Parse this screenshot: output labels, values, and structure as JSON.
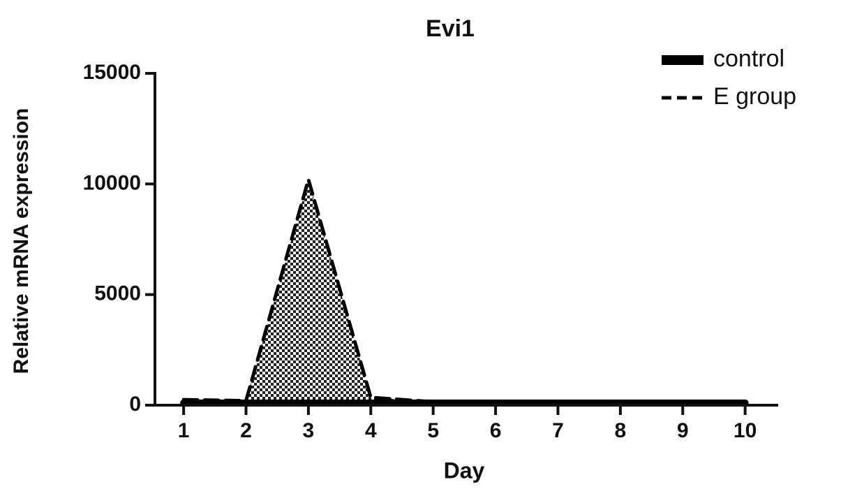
{
  "chart_data": {
    "type": "line",
    "title": "Evi1",
    "xlabel": "Day",
    "ylabel": "Relative mRNA expression",
    "x": [
      1,
      2,
      3,
      4,
      5,
      6,
      7,
      8,
      9,
      10
    ],
    "series": [
      {
        "name": "control",
        "color": "#000000",
        "values": [
          100,
          100,
          100,
          100,
          100,
          100,
          100,
          100,
          100,
          100
        ]
      },
      {
        "name": "E group",
        "color": "#000000",
        "fill": "checkered",
        "values": [
          250,
          200,
          10200,
          350,
          150,
          100,
          100,
          100,
          100,
          100
        ]
      }
    ],
    "xlim": [
      0.54,
      10.53
    ],
    "xticks": [
      1,
      2,
      3,
      4,
      5,
      6,
      7,
      8,
      9,
      10
    ],
    "ylim": [
      0,
      15000
    ],
    "yticks": [
      0,
      5000,
      10000,
      15000
    ],
    "legend": "top-right"
  }
}
